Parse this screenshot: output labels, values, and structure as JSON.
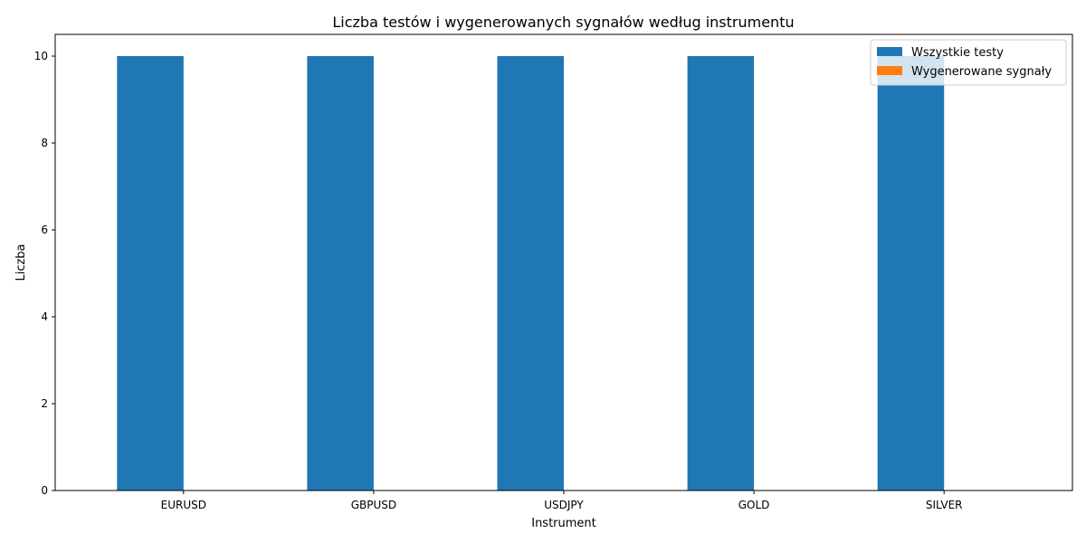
{
  "chart_data": {
    "type": "bar",
    "title": "Liczba testów i wygenerowanych sygnałów według instrumentu",
    "xlabel": "Instrument",
    "ylabel": "Liczba",
    "categories": [
      "EURUSD",
      "GBPUSD",
      "USDJPY",
      "GOLD",
      "SILVER"
    ],
    "series": [
      {
        "name": "Wszystkie testy",
        "values": [
          10,
          10,
          10,
          10,
          10
        ],
        "color": "#1f77b4"
      },
      {
        "name": "Wygenerowane sygnały",
        "values": [
          0,
          0,
          0,
          0,
          0
        ],
        "color": "#ff7f0e"
      }
    ],
    "ylim": [
      0,
      10.5
    ],
    "yticks": [
      0,
      2,
      4,
      6,
      8,
      10
    ],
    "grid": false,
    "legend_position": "top-right"
  }
}
